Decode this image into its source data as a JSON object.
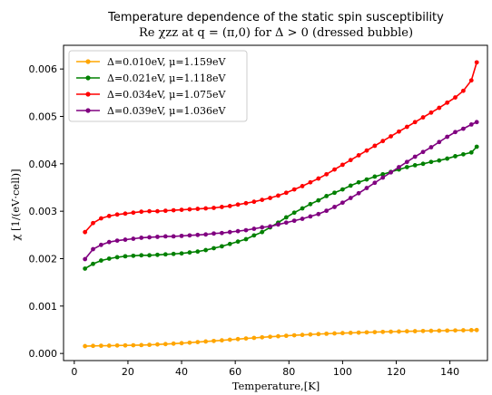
{
  "chart_data": {
    "type": "line",
    "title": "Temperature dependence of the static spin susceptibility",
    "subtitle": "Re χzz at q = (π,0) for Δ > 0 (dressed bubble)",
    "xlabel": "Temperature,[K]",
    "ylabel": "χ [1/(eV·cell)]",
    "xlim": [
      -4,
      154
    ],
    "ylim": [
      -0.00015,
      0.0065
    ],
    "xticks": [
      0,
      20,
      40,
      60,
      80,
      100,
      120,
      140
    ],
    "xtick_labels": [
      "0",
      "20",
      "40",
      "60",
      "80",
      "100",
      "120",
      "140"
    ],
    "yticks": [
      0.0,
      0.001,
      0.002,
      0.003,
      0.004,
      0.005,
      0.006
    ],
    "ytick_labels": [
      "0.000",
      "0.001",
      "0.002",
      "0.003",
      "0.004",
      "0.005",
      "0.006"
    ],
    "grid": false,
    "legend_position": "top-left",
    "x": [
      4,
      7,
      10,
      13,
      16,
      19,
      22,
      25,
      28,
      31,
      34,
      37,
      40,
      43,
      46,
      49,
      52,
      55,
      58,
      61,
      64,
      67,
      70,
      73,
      76,
      79,
      82,
      85,
      88,
      91,
      94,
      97,
      100,
      103,
      106,
      109,
      112,
      115,
      118,
      121,
      124,
      127,
      130,
      133,
      136,
      139,
      142,
      145,
      148,
      150
    ],
    "series": [
      {
        "name": "Δ=0.010eV, μ=1.159eV",
        "color": "#ffa500",
        "values": [
          0.000155,
          0.00016,
          0.000163,
          0.000165,
          0.000168,
          0.00017,
          0.000173,
          0.000177,
          0.000182,
          0.00019,
          0.000198,
          0.000207,
          0.000217,
          0.000228,
          0.00024,
          0.000252,
          0.000264,
          0.000277,
          0.00029,
          0.000303,
          0.000316,
          0.000328,
          0.00034,
          0.000352,
          0.000363,
          0.000373,
          0.000383,
          0.000392,
          0.000401,
          0.000409,
          0.000416,
          0.000423,
          0.000429,
          0.000435,
          0.00044,
          0.000445,
          0.00045,
          0.000455,
          0.000459,
          0.000463,
          0.000467,
          0.00047,
          0.000474,
          0.000477,
          0.00048,
          0.000483,
          0.000486,
          0.000489,
          0.000492,
          0.000494
        ]
      },
      {
        "name": "Δ=0.021eV, μ=1.118eV",
        "color": "#008000",
        "values": [
          0.00179,
          0.00189,
          0.00196,
          0.002,
          0.00203,
          0.00205,
          0.00206,
          0.00207,
          0.00207,
          0.00208,
          0.00209,
          0.0021,
          0.00211,
          0.00213,
          0.00215,
          0.00218,
          0.00222,
          0.00226,
          0.00231,
          0.00236,
          0.00241,
          0.00249,
          0.00256,
          0.00266,
          0.00276,
          0.00287,
          0.00297,
          0.00306,
          0.00315,
          0.00323,
          0.00332,
          0.00339,
          0.00346,
          0.00354,
          0.00361,
          0.00367,
          0.00373,
          0.00378,
          0.00383,
          0.00388,
          0.00393,
          0.00397,
          0.004,
          0.00404,
          0.00407,
          0.00411,
          0.00416,
          0.0042,
          0.00424,
          0.00436
        ]
      },
      {
        "name": "Δ=0.034eV, μ=1.075eV",
        "color": "#ff0000",
        "values": [
          0.00256,
          0.00275,
          0.00285,
          0.0029,
          0.00293,
          0.00295,
          0.00297,
          0.00299,
          0.003,
          0.003,
          0.00301,
          0.00302,
          0.00303,
          0.00304,
          0.00305,
          0.00306,
          0.00307,
          0.00309,
          0.00311,
          0.00314,
          0.00317,
          0.0032,
          0.00324,
          0.00328,
          0.00333,
          0.00339,
          0.00346,
          0.00353,
          0.00361,
          0.00369,
          0.00378,
          0.00388,
          0.00398,
          0.00408,
          0.00418,
          0.00428,
          0.00438,
          0.00448,
          0.00458,
          0.00468,
          0.00478,
          0.00488,
          0.00498,
          0.00508,
          0.00518,
          0.00529,
          0.0054,
          0.00554,
          0.00576,
          0.00614
        ]
      },
      {
        "name": "Δ=0.039eV, μ=1.036eV",
        "color": "#800080",
        "values": [
          0.00199,
          0.0022,
          0.00229,
          0.00235,
          0.00238,
          0.0024,
          0.00242,
          0.00244,
          0.00245,
          0.00246,
          0.00247,
          0.00247,
          0.00248,
          0.00249,
          0.0025,
          0.00251,
          0.00253,
          0.00254,
          0.00256,
          0.00258,
          0.0026,
          0.00263,
          0.00266,
          0.00268,
          0.00272,
          0.00276,
          0.0028,
          0.00284,
          0.00289,
          0.00294,
          0.00301,
          0.00309,
          0.00318,
          0.00328,
          0.00338,
          0.00349,
          0.0036,
          0.00371,
          0.00382,
          0.00393,
          0.00404,
          0.00415,
          0.00425,
          0.00435,
          0.00446,
          0.00457,
          0.00467,
          0.00474,
          0.00483,
          0.00488
        ]
      }
    ]
  }
}
